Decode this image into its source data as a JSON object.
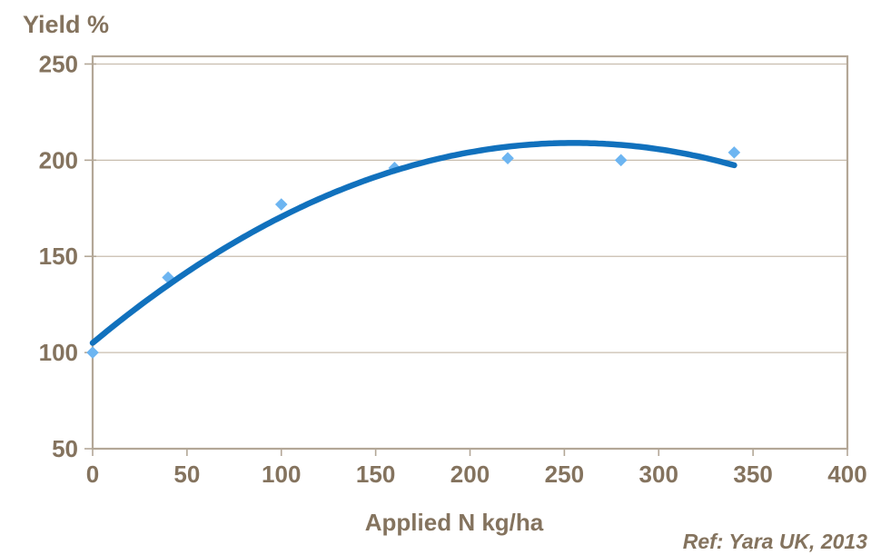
{
  "page": {
    "background": "#FFFFFF"
  },
  "chart_data": {
    "type": "scatter",
    "title": "Yield %",
    "xlabel": "Applied N kg/ha",
    "ylabel": "Yield %",
    "reference": "Ref: Yara UK, 2013",
    "xlim": [
      0,
      400
    ],
    "ylim": [
      50,
      254
    ],
    "x_ticks": [
      0,
      50,
      100,
      150,
      200,
      250,
      300,
      350,
      400
    ],
    "y_ticks": [
      50,
      100,
      150,
      200,
      250
    ],
    "grid": "horizontal-only",
    "legend": "none",
    "series": [
      {
        "name": "observed-yield",
        "type": "scatter",
        "marker": "diamond",
        "color": "#6DB5F1",
        "points": [
          [
            0,
            100
          ],
          [
            40,
            139
          ],
          [
            100,
            177
          ],
          [
            160,
            196
          ],
          [
            220,
            201
          ],
          [
            280,
            200
          ],
          [
            340,
            204
          ]
        ]
      },
      {
        "name": "polynomial-trendline",
        "type": "quadratic-curve",
        "color": "#1171BD",
        "coefficients": {
          "a": -0.0016,
          "b": 0.8157,
          "c": 105
        },
        "x_range": [
          0,
          340
        ],
        "peak": {
          "x": 255,
          "y": 209
        }
      }
    ],
    "colors": {
      "axis": "#B3A797",
      "gridline": "#C8BDAE",
      "text": "#84735E",
      "marker": "#6DB5F1",
      "trendline": "#1171BD"
    }
  }
}
